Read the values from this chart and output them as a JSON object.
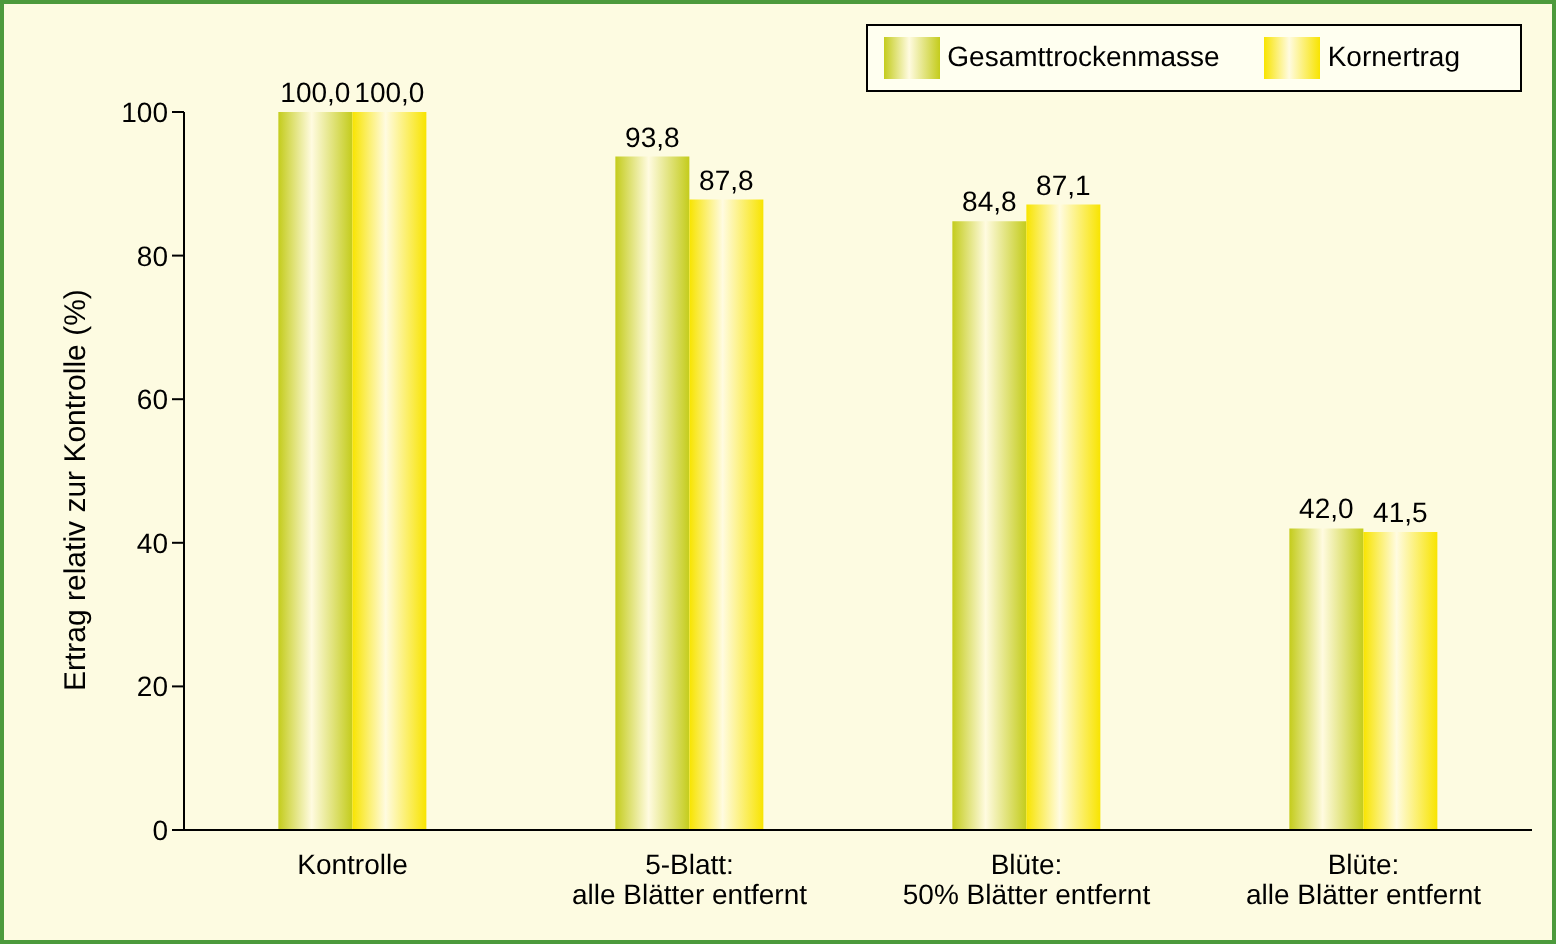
{
  "chart_data": {
    "type": "bar",
    "ylabel": "Ertrag relativ zur Kontrolle (%)",
    "categories": [
      "Kontrolle",
      "5-Blatt:\nalle Blätter entfernt",
      "Blüte:\n50% Blätter entfernt",
      "Blüte:\nalle Blätter entfernt"
    ],
    "series": [
      {
        "name": "Gesamttrockenmasse",
        "color": "#c4cc1c",
        "values": [
          100.0,
          93.8,
          84.8,
          42.0
        ],
        "value_labels": [
          "100,0",
          "93,8",
          "84,8",
          "42,0"
        ]
      },
      {
        "name": "Kornertrag",
        "color": "#f8e400",
        "values": [
          100.0,
          87.8,
          87.1,
          41.5
        ],
        "value_labels": [
          "100,0",
          "87,8",
          "87,1",
          "41,5"
        ]
      }
    ],
    "ylim": [
      0,
      100
    ],
    "yticks": [
      0,
      20,
      40,
      60,
      80,
      100
    ],
    "grid": false,
    "legend": "top right"
  }
}
